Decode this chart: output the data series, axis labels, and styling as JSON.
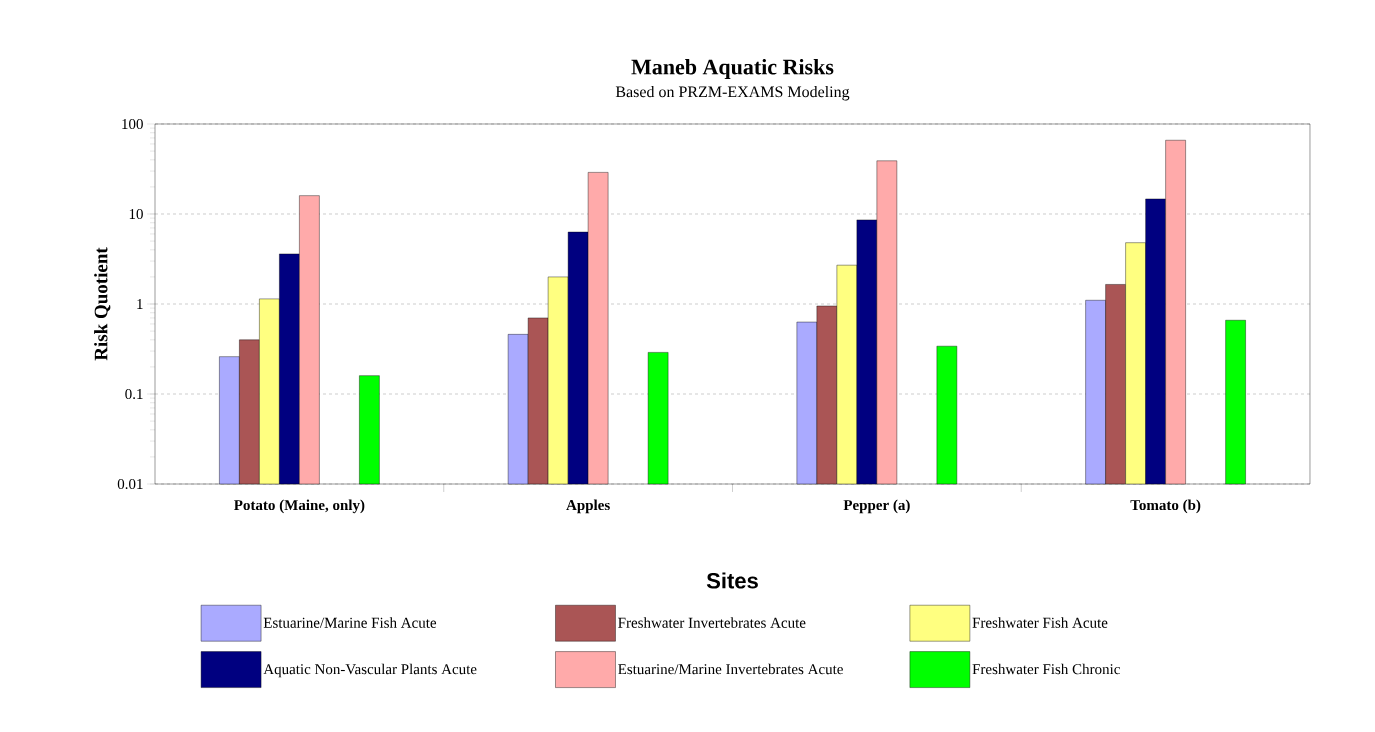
{
  "chart_data": {
    "type": "bar",
    "title": "Maneb Aquatic Risks",
    "subtitle": "Based on PRZM-EXAMS Modeling",
    "xlabel": "Sites",
    "ylabel": "Risk Quotient",
    "categories": [
      "Potato (Maine, only)",
      "Apples",
      "Pepper (a)",
      "Tomato (b)"
    ],
    "series": [
      {
        "name": "Estuarine/Marine Fish Acute",
        "color": "#aaaaff",
        "values": [
          0.26,
          0.46,
          0.63,
          1.1
        ]
      },
      {
        "name": "Freshwater Invertebrates Acute",
        "color": "#aa5555",
        "values": [
          0.4,
          0.7,
          0.95,
          1.65
        ]
      },
      {
        "name": "Freshwater Fish Acute",
        "color": "#ffff80",
        "values": [
          1.14,
          2.0,
          2.7,
          4.8
        ]
      },
      {
        "name": "Aquatic Non-Vascular Plants Acute",
        "color": "#000080",
        "values": [
          3.6,
          6.3,
          8.6,
          14.7
        ]
      },
      {
        "name": "Estuarine/Marine Invertebrates Acute",
        "color": "#ffaaaa",
        "values": [
          16,
          29,
          39,
          66
        ]
      },
      {
        "name": "Freshwater Fish Chronic",
        "color": "#00ff00",
        "values": [
          0.16,
          0.29,
          0.34,
          0.66
        ]
      }
    ],
    "log": "y",
    "ylim": [
      0.01,
      100
    ],
    "yticks": [
      0.01,
      0.1,
      1,
      10,
      100
    ],
    "grid": "y",
    "legend": "bottom"
  }
}
